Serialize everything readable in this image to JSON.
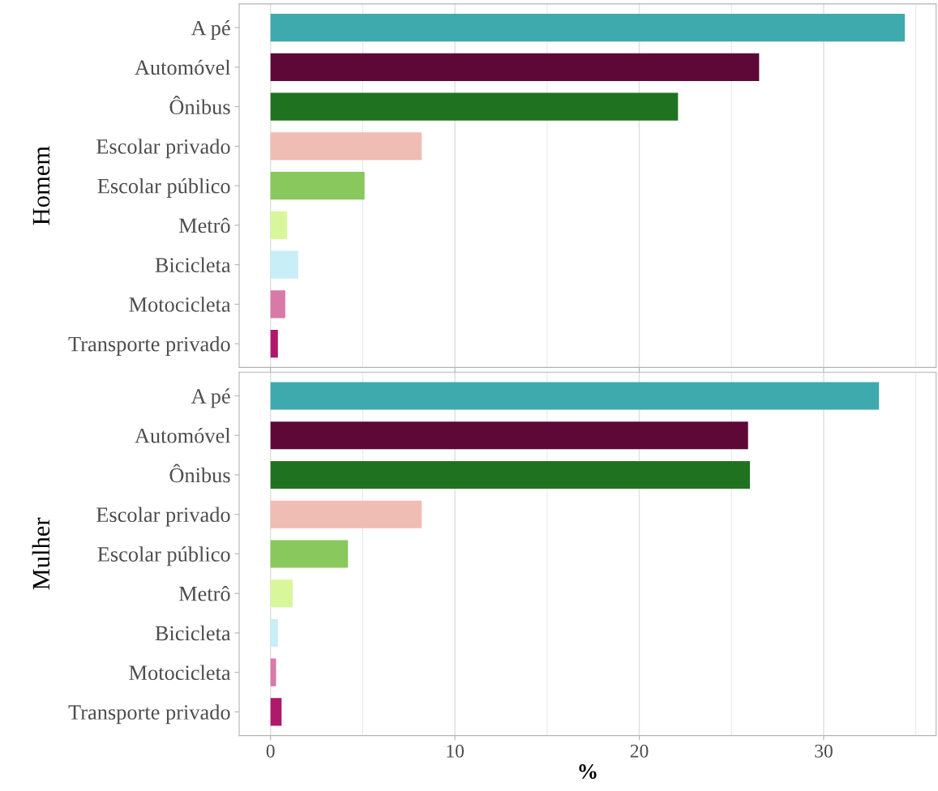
{
  "chart_data": [
    {
      "type": "bar",
      "orientation": "horizontal",
      "ylabel": "Homem",
      "categories": [
        "A pé",
        "Automóvel",
        "Ônibus",
        "Escolar privado",
        "Escolar público",
        "Metrô",
        "Bicicleta",
        "Motocicleta",
        "Transporte privado"
      ],
      "values": [
        34.4,
        26.5,
        22.1,
        8.2,
        5.1,
        0.9,
        1.5,
        0.8,
        0.4
      ],
      "colors": [
        "#3eaaae",
        "#5e0838",
        "#1f721f",
        "#f0bdb4",
        "#88c85c",
        "#d8f79a",
        "#c8eef7",
        "#d87aa8",
        "#b0186a"
      ],
      "xlim": [
        -1.7,
        36.1
      ],
      "xticks": [
        0,
        10,
        20,
        30
      ],
      "grid": "x",
      "tick_labels": "y"
    },
    {
      "type": "bar",
      "orientation": "horizontal",
      "ylabel": "Mulher",
      "xlabel": "%",
      "categories": [
        "A pé",
        "Automóvel",
        "Ônibus",
        "Escolar privado",
        "Escolar público",
        "Metrô",
        "Bicicleta",
        "Motocicleta",
        "Transporte privado"
      ],
      "values": [
        33.0,
        25.9,
        26.0,
        8.2,
        4.2,
        1.2,
        0.4,
        0.3,
        0.6
      ],
      "colors": [
        "#3eaaae",
        "#5e0838",
        "#1f721f",
        "#f0bdb4",
        "#88c85c",
        "#d8f79a",
        "#c8eef7",
        "#d87aa8",
        "#b0186a"
      ],
      "xlim": [
        -1.7,
        36.1
      ],
      "xticks": [
        0,
        10,
        20,
        30
      ],
      "grid": "x"
    }
  ]
}
